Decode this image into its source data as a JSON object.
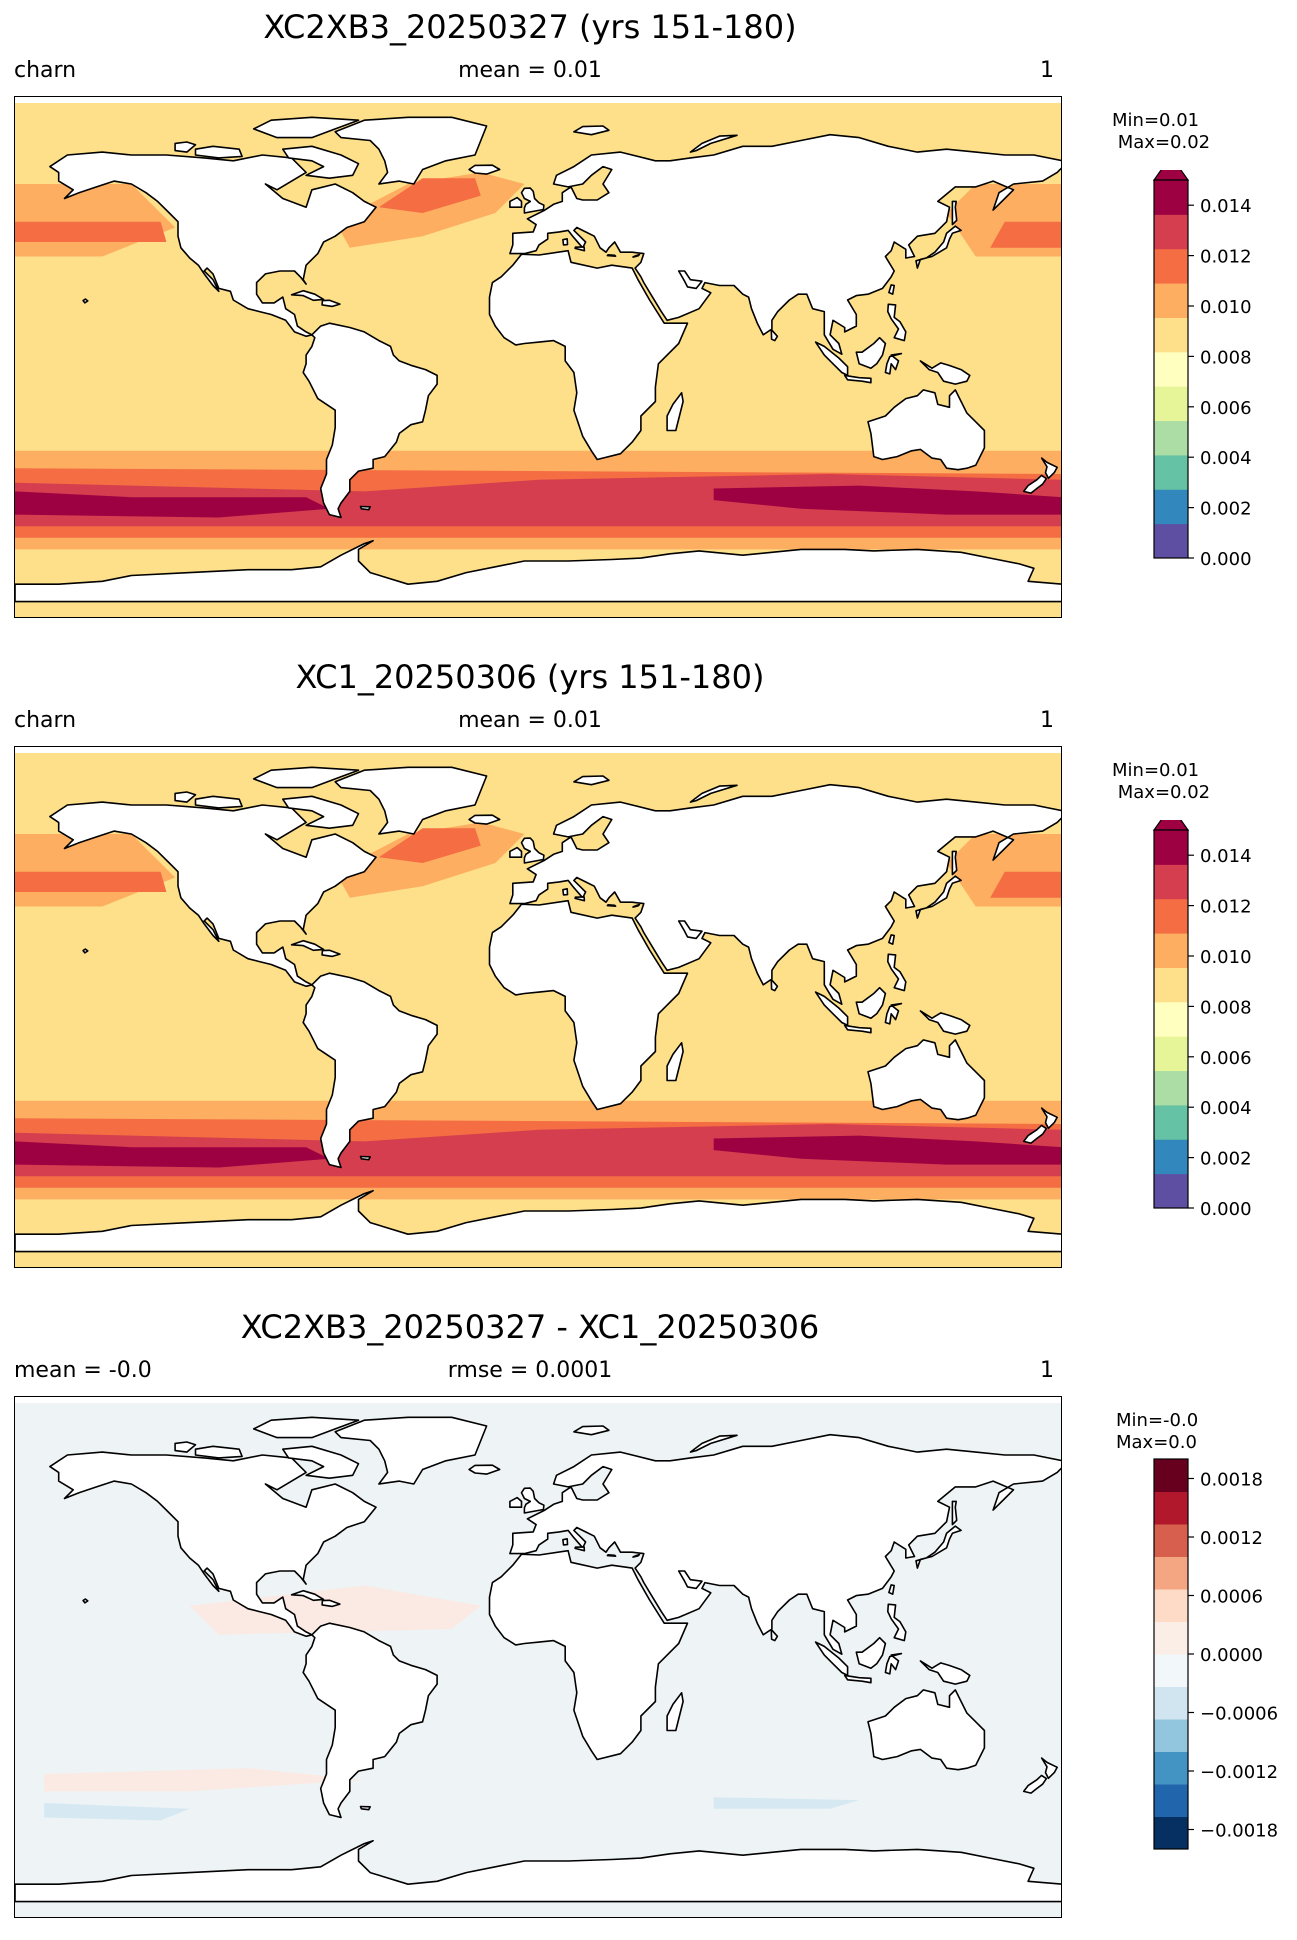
{
  "panels": [
    {
      "title": "XC2XB3_20250327 (yrs 151-180)",
      "left": "charn",
      "center": "mean = 0.01",
      "right": "1",
      "min_label": "Min=0.01",
      "max_label": "Max=0.02",
      "colorbar": {
        "ticks": [
          "0.000",
          "0.002",
          "0.004",
          "0.006",
          "0.008",
          "0.010",
          "0.012",
          "0.014"
        ],
        "range": [
          0.0,
          0.015
        ],
        "extend_max": true,
        "colors": [
          "#5e4fa2",
          "#3288bd",
          "#66c2a5",
          "#abdda4",
          "#e6f598",
          "#ffffbf",
          "#fee08b",
          "#fdae61",
          "#f46d43",
          "#d53e4f",
          "#9e0142"
        ]
      },
      "field": {
        "base_color": "#fee08b",
        "bands": [
          {
            "region": "southern-ocean-core",
            "color": "#9e0142"
          },
          {
            "region": "southern-ocean-ring",
            "color": "#d53e4f"
          },
          {
            "region": "southern-ocean-outer",
            "color": "#f46d43"
          },
          {
            "region": "north-atlantic",
            "color": "#f46d43"
          },
          {
            "region": "north-pacific",
            "color": "#fdae61"
          }
        ]
      }
    },
    {
      "title": "XC1_20250306 (yrs 151-180)",
      "left": "charn",
      "center": "mean = 0.01",
      "right": "1",
      "min_label": "Min=0.01",
      "max_label": "Max=0.02",
      "colorbar": {
        "ticks": [
          "0.000",
          "0.002",
          "0.004",
          "0.006",
          "0.008",
          "0.010",
          "0.012",
          "0.014"
        ],
        "range": [
          0.0,
          0.015
        ],
        "extend_max": true,
        "colors": [
          "#5e4fa2",
          "#3288bd",
          "#66c2a5",
          "#abdda4",
          "#e6f598",
          "#ffffbf",
          "#fee08b",
          "#fdae61",
          "#f46d43",
          "#d53e4f",
          "#9e0142"
        ]
      },
      "field": {
        "base_color": "#fee08b",
        "bands": [
          {
            "region": "southern-ocean-core",
            "color": "#9e0142"
          },
          {
            "region": "southern-ocean-ring",
            "color": "#d53e4f"
          },
          {
            "region": "southern-ocean-outer",
            "color": "#f46d43"
          },
          {
            "region": "north-atlantic",
            "color": "#f46d43"
          },
          {
            "region": "north-pacific",
            "color": "#fdae61"
          }
        ]
      }
    },
    {
      "title": "XC2XB3_20250327 - XC1_20250306",
      "left": "mean = -0.0",
      "center": "rmse = 0.0001",
      "right": "1",
      "min_label": "Min=-0.0",
      "max_label": "Max=0.0",
      "colorbar": {
        "ticks": [
          "−0.0018",
          "−0.0012",
          "−0.0006",
          "0.0000",
          "0.0006",
          "0.0012",
          "0.0018"
        ],
        "range": [
          -0.002,
          0.002
        ],
        "extend_max": false,
        "colors": [
          "#053061",
          "#2166ac",
          "#4393c3",
          "#92c5de",
          "#d1e5f0",
          "#f2f7fa",
          "#fbeee6",
          "#fddbc7",
          "#f4a582",
          "#d6604d",
          "#b2182b",
          "#67001f"
        ]
      },
      "field": {
        "base_color": "#eef3f5",
        "bands": [
          {
            "region": "warm-patches",
            "color": "#fbeae3"
          },
          {
            "region": "southern-cool",
            "color": "#d6e9f3"
          }
        ]
      }
    }
  ]
}
